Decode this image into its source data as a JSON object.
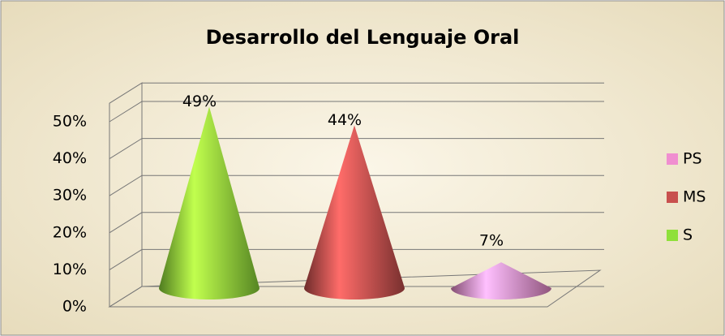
{
  "chart_data": {
    "type": "cone",
    "title": "Desarrollo del Lenguaje Oral",
    "categories": [
      "S",
      "MS",
      "PS"
    ],
    "values": [
      49,
      44,
      7
    ],
    "value_labels": [
      "49%",
      "44%",
      "7%"
    ],
    "colors": [
      "#8fe03a",
      "#c8504e",
      "#f08ed0"
    ],
    "ylim": [
      0,
      55
    ],
    "yticks": [
      {
        "value": 0,
        "label": "0%"
      },
      {
        "value": 10,
        "label": "10%"
      },
      {
        "value": 20,
        "label": "20%"
      },
      {
        "value": 30,
        "label": "30%"
      },
      {
        "value": 40,
        "label": "40%"
      },
      {
        "value": 50,
        "label": "50%"
      }
    ],
    "grid": true,
    "legend": "right"
  }
}
